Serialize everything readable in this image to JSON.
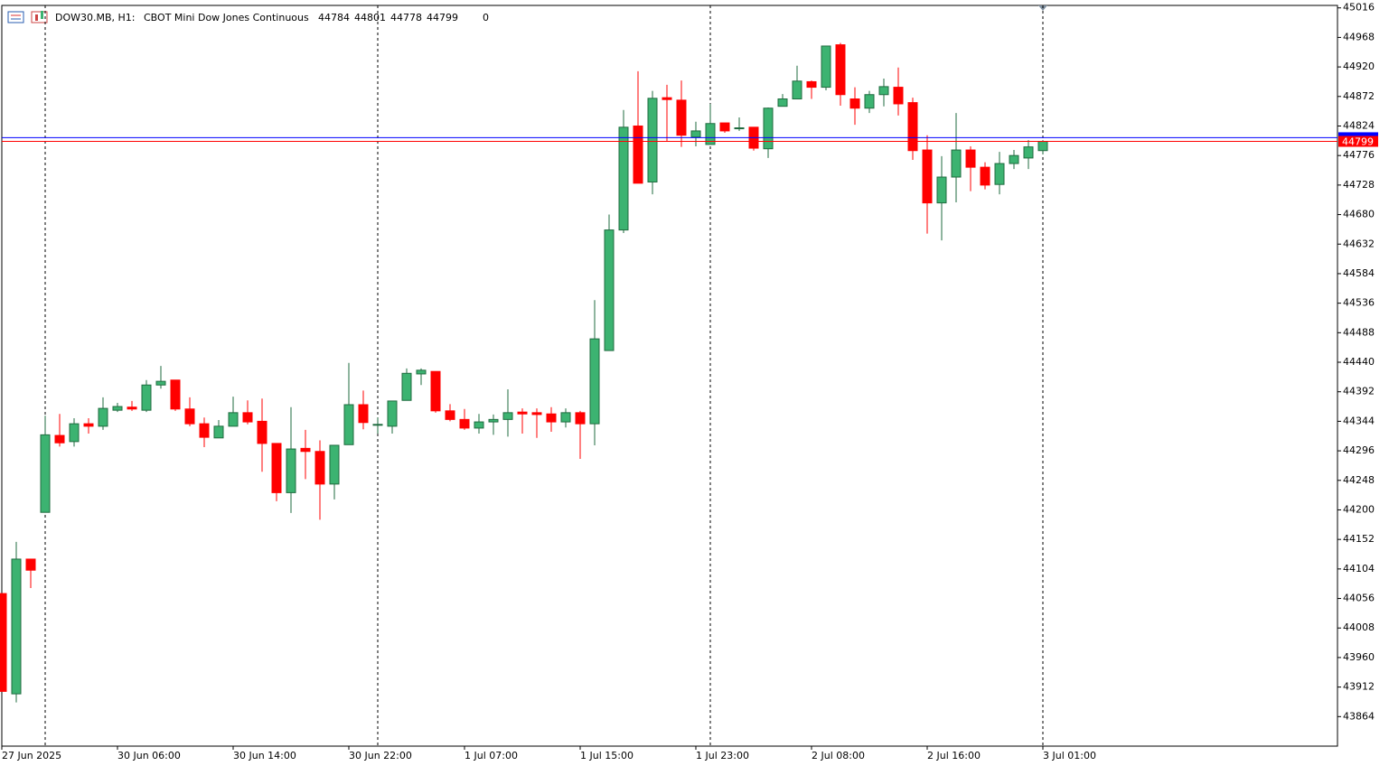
{
  "chart_data": {
    "type": "candlestick",
    "symbol": "DOW30.MB, H1:",
    "description": "CBOT Mini Dow Jones Continuous",
    "header_values": [
      44784,
      44801,
      44778,
      44799,
      0
    ],
    "categories": [
      "27 Jun 2025",
      null,
      null,
      null,
      null,
      null,
      null,
      null,
      "30 Jun 06:00",
      null,
      null,
      null,
      null,
      null,
      null,
      null,
      "30 Jun 14:00",
      null,
      null,
      null,
      null,
      null,
      null,
      null,
      "30 Jun 22:00",
      null,
      null,
      null,
      null,
      null,
      null,
      null,
      "1 Jul 07:00",
      null,
      null,
      null,
      null,
      null,
      null,
      null,
      "1 Jul 15:00",
      null,
      null,
      null,
      null,
      null,
      null,
      null,
      "1 Jul 23:00",
      null,
      null,
      null,
      null,
      null,
      null,
      null,
      "2 Jul 08:00",
      null,
      null,
      null,
      null,
      null,
      null,
      null,
      "2 Jul 16:00",
      null,
      null,
      null,
      null,
      null,
      null,
      null,
      "3 Jul 01:00"
    ],
    "open": [
      44064,
      43901,
      44120,
      44196,
      44321,
      44311,
      44340,
      44336,
      44362,
      44367,
      44362,
      44403,
      44411,
      44364,
      44340,
      44317,
      44336,
      44358,
      44344,
      44308,
      44228,
      44300,
      44295,
      44242,
      44306,
      44371,
      44338,
      44336,
      44378,
      44421,
      44425,
      44361,
      44347,
      44333,
      44343,
      44347,
      44359,
      44358,
      44356,
      44343,
      44358,
      44340,
      44459,
      44655,
      44824,
      44733,
      44870,
      44866,
      44806,
      44794,
      44829,
      44820,
      44822,
      44787,
      44856,
      44868,
      44896,
      44887,
      44956,
      44868,
      44853,
      44875,
      44887,
      44862,
      44785,
      44699,
      44741,
      44785,
      44757,
      44729,
      44763,
      44772,
      44784
    ],
    "high": [
      44064,
      44148,
      44120,
      44353,
      44356,
      44349,
      44349,
      44383,
      44374,
      44377,
      44411,
      44434,
      44411,
      44383,
      44350,
      44346,
      44384,
      44378,
      44381,
      44308,
      44367,
      44330,
      44313,
      44305,
      44439,
      44394,
      44350,
      44377,
      44430,
      44430,
      44425,
      44372,
      44364,
      44356,
      44355,
      44396,
      44365,
      44365,
      44367,
      44365,
      44361,
      44541,
      44680,
      44850,
      44913,
      44881,
      44891,
      44898,
      44831,
      44860,
      44829,
      44838,
      44822,
      44854,
      44876,
      44922,
      44898,
      44954,
      44959,
      44887,
      44881,
      44901,
      44919,
      44870,
      44809,
      44775,
      44845,
      44791,
      44765,
      44782,
      44785,
      44801,
      44801
    ],
    "low": [
      43905,
      43887,
      44073,
      44196,
      44303,
      44303,
      44324,
      44330,
      44359,
      44361,
      44359,
      44397,
      44361,
      44336,
      44302,
      44317,
      44336,
      44339,
      44262,
      44214,
      44195,
      44250,
      44184,
      44217,
      44306,
      44331,
      44324,
      44324,
      44378,
      44403,
      44358,
      44344,
      44330,
      44324,
      44322,
      44319,
      44324,
      44317,
      44327,
      44334,
      44283,
      44305,
      44459,
      44650,
      44731,
      44713,
      44799,
      44790,
      44791,
      44794,
      44813,
      44816,
      44784,
      44772,
      44856,
      44868,
      44868,
      44882,
      44857,
      44826,
      44845,
      44856,
      44841,
      44769,
      44649,
      44638,
      44700,
      44718,
      44721,
      44713,
      44754,
      44754,
      44778
    ],
    "close": [
      43905,
      44120,
      44102,
      44322,
      44309,
      44340,
      44336,
      44365,
      44368,
      44364,
      44403,
      44409,
      44364,
      44340,
      44318,
      44336,
      44358,
      44343,
      44308,
      44228,
      44299,
      44295,
      44242,
      44305,
      44371,
      44342,
      44339,
      44377,
      44422,
      44427,
      44361,
      44347,
      44333,
      44343,
      44347,
      44358,
      44356,
      44355,
      44343,
      44358,
      44340,
      44478,
      44655,
      44822,
      44731,
      44869,
      44867,
      44809,
      44816,
      44828,
      44816,
      44821,
      44788,
      44853,
      44868,
      44897,
      44887,
      44954,
      44875,
      44853,
      44875,
      44888,
      44860,
      44784,
      44699,
      44741,
      44785,
      44757,
      44728,
      44763,
      44776,
      44790,
      44799
    ],
    "up_color": "#3cb371",
    "down_color": "#ff0000",
    "ylim": [
      43816,
      45020
    ],
    "yticks": [
      45016,
      44968,
      44920,
      44872,
      44824,
      44776,
      44728,
      44680,
      44632,
      44584,
      44536,
      44488,
      44440,
      44392,
      44344,
      44296,
      44248,
      44200,
      44152,
      44104,
      44056,
      44008,
      43960,
      43912,
      43864
    ],
    "bid": 44799,
    "bid_color": "#ff0000",
    "ask": 44805,
    "ask_color": "#0000ff",
    "grid": false
  }
}
